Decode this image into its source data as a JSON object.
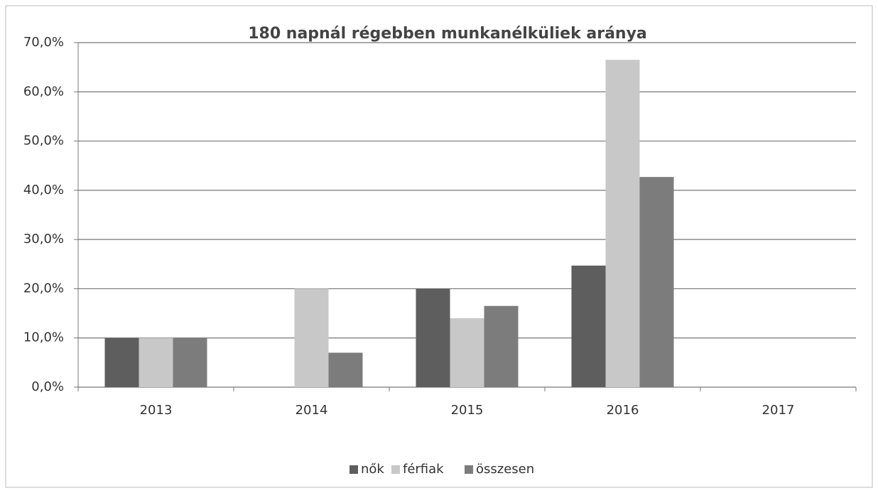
{
  "chart_data": {
    "type": "bar",
    "title": "180 napnál régebben munkanélküliek aránya",
    "categories": [
      "2013",
      "2014",
      "2015",
      "2016",
      "2017"
    ],
    "series": [
      {
        "name": "nők",
        "color": "#5e5e5e",
        "values": [
          10,
          0,
          20,
          24.7,
          0
        ]
      },
      {
        "name": "férfiak",
        "color": "#c8c8c8",
        "values": [
          10,
          20,
          14,
          66.5,
          0
        ]
      },
      {
        "name": "összesen",
        "color": "#7c7c7c",
        "values": [
          10,
          7,
          16.5,
          42.7,
          0
        ]
      }
    ],
    "ylim": [
      0,
      70
    ],
    "yticks": [
      {
        "value": 0,
        "label": "0,0%"
      },
      {
        "value": 10,
        "label": "10,0%"
      },
      {
        "value": 20,
        "label": "20,0%"
      },
      {
        "value": 30,
        "label": "30,0%"
      },
      {
        "value": 40,
        "label": "40,0%"
      },
      {
        "value": 50,
        "label": "50,0%"
      },
      {
        "value": 60,
        "label": "60,0%"
      },
      {
        "value": 70,
        "label": "70,0%"
      }
    ],
    "grid": true,
    "legend": "bottom"
  }
}
